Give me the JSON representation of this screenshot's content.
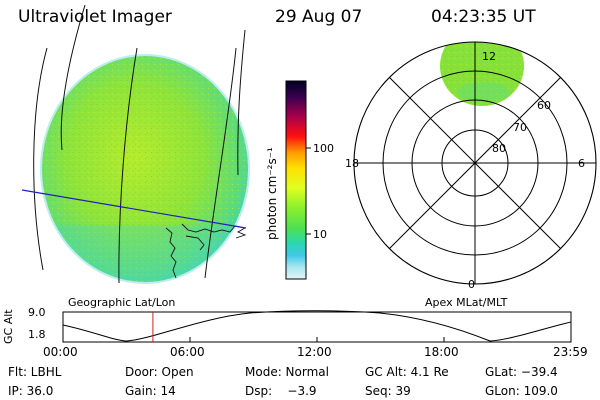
{
  "header": {
    "instrument": "Ultraviolet Imager",
    "date": "29 Aug 07",
    "time": "04:23:35 UT"
  },
  "left_panel": {
    "caption": "Geographic Lat/Lon"
  },
  "colorbar": {
    "unit_label": "photon cm⁻²s⁻¹",
    "ticks": [
      "100",
      "10"
    ],
    "colors": [
      "#000022",
      "#6a0050",
      "#a8004a",
      "#ff1010",
      "#ff9a00",
      "#ffe000",
      "#e0ff20",
      "#8cf02c",
      "#50e050",
      "#2ad7b0",
      "#40c8e8",
      "#a8e8f0",
      "#e6f3f6"
    ]
  },
  "polar_plot": {
    "caption": "Apex MLat/MLT",
    "mlt_labels": [
      "12",
      "18",
      "6",
      "0"
    ],
    "lat_labels": [
      "60",
      "70",
      "80"
    ]
  },
  "orbit_plot": {
    "axis_title": "GC Alt",
    "y_ticks": [
      "9.0",
      "1.8"
    ],
    "x_ticks": [
      "00:00",
      "06:00",
      "12:00",
      "18:00",
      "23:59"
    ],
    "current_time_fraction": 0.177
  },
  "status": {
    "flt": "Flt: LBHL",
    "door": "Door: Open",
    "mode": "Mode: Normal",
    "gc_alt": "GC Alt: 4.1 Re",
    "glat": "GLat: −39.4",
    "ip": "IP: 36.0",
    "gain": "Gain: 14",
    "dsp": "Dsp:    −3.9",
    "seq": "Seq: 39",
    "glon": "GLon: 109.0"
  },
  "colors": {
    "aurora_green": "#86e23a",
    "grid_line": "#1a1a1a",
    "track_line": "#2020c0",
    "time_marker": "#cc2020"
  }
}
